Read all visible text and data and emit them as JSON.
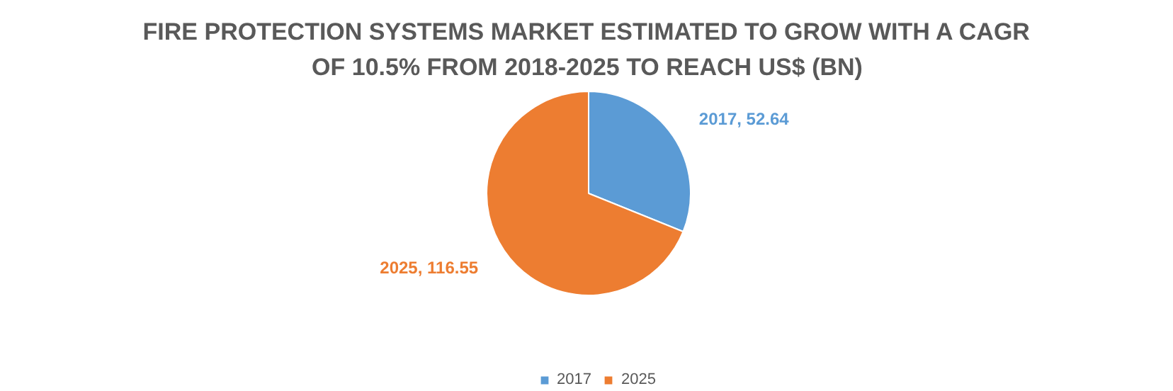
{
  "chart_data": {
    "type": "pie",
    "title": "FIRE PROTECTION SYSTEMS MARKET ESTIMATED TO GROW WITH A CAGR OF 10.5% FROM 2018-2025 TO REACH US$ (BN)",
    "categories": [
      "2017",
      "2025"
    ],
    "values": [
      52.64,
      116.55
    ],
    "colors": [
      "#5b9bd5",
      "#ed7d31"
    ],
    "value_labels": [
      "2017, 52.64",
      "2025, 116.55"
    ],
    "legend": "bottom"
  }
}
